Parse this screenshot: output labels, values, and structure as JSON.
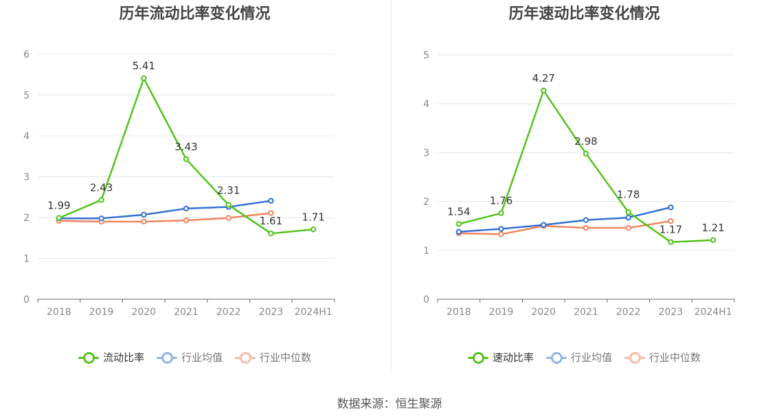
{
  "source_text": "数据来源：恒生聚源",
  "colors": {
    "primary": "#52c41a",
    "avg": "#3370d4",
    "median": "#f0845e"
  },
  "chart_data": [
    {
      "type": "line",
      "title": "历年流动比率变化情况",
      "categories": [
        "2018",
        "2019",
        "2020",
        "2021",
        "2022",
        "2023",
        "2024H1"
      ],
      "ylim": [
        0,
        6
      ],
      "yticks": [
        "0",
        "1",
        "2",
        "3",
        "4",
        "5",
        "6"
      ],
      "grid": true,
      "legend_position": "bottom",
      "series": [
        {
          "name": "流动比率",
          "color": "#52c41a",
          "values": [
            1.99,
            2.43,
            5.41,
            3.43,
            2.31,
            1.61,
            1.71
          ],
          "labels": [
            "1.99",
            "2.43",
            "5.41",
            "3.43",
            "2.31",
            "1.61",
            "1.71"
          ]
        },
        {
          "name": "行业均值",
          "color": "#3370d4",
          "values": [
            1.98,
            1.98,
            2.07,
            2.22,
            2.26,
            2.41,
            null
          ]
        },
        {
          "name": "行业中位数",
          "color": "#f0845e",
          "values": [
            1.92,
            1.9,
            1.9,
            1.93,
            1.99,
            2.11,
            null
          ]
        }
      ]
    },
    {
      "type": "line",
      "title": "历年速动比率变化情况",
      "categories": [
        "2018",
        "2019",
        "2020",
        "2021",
        "2022",
        "2023",
        "2024H1"
      ],
      "ylim": [
        0,
        5
      ],
      "yticks": [
        "0",
        "1",
        "2",
        "3",
        "4",
        "5"
      ],
      "grid": true,
      "legend_position": "bottom",
      "series": [
        {
          "name": "速动比率",
          "color": "#52c41a",
          "values": [
            1.54,
            1.76,
            4.27,
            2.98,
            1.78,
            1.17,
            1.21
          ],
          "labels": [
            "1.54",
            "1.76",
            "4.27",
            "2.98",
            "1.78",
            "1.17",
            "1.21"
          ]
        },
        {
          "name": "行业均值",
          "color": "#3370d4",
          "values": [
            1.38,
            1.44,
            1.52,
            1.62,
            1.67,
            1.88,
            null
          ]
        },
        {
          "name": "行业中位数",
          "color": "#f0845e",
          "values": [
            1.35,
            1.33,
            1.5,
            1.46,
            1.46,
            1.6,
            null
          ]
        }
      ]
    }
  ]
}
